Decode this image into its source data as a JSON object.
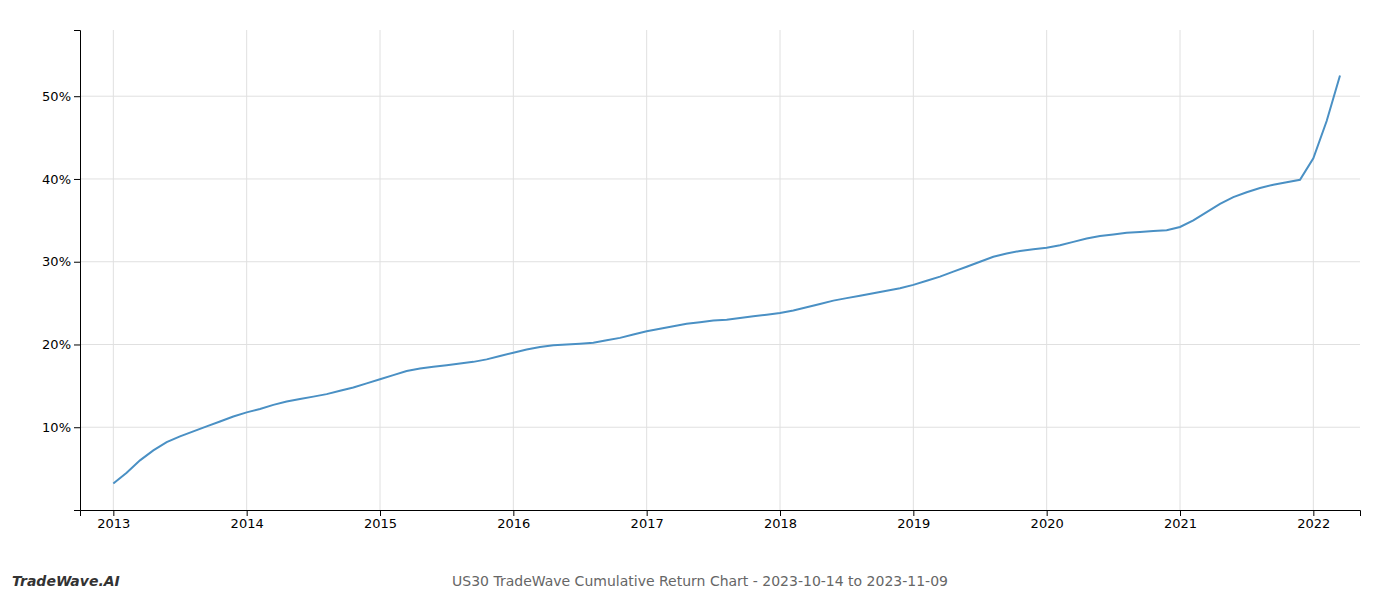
{
  "chart_data": {
    "type": "line",
    "title": "US30 TradeWave Cumulative Return Chart - 2023-10-14 to 2023-11-09",
    "annotations": [
      "TradeWave.AI"
    ],
    "x": [
      2013.0,
      2013.1,
      2013.2,
      2013.3,
      2013.4,
      2013.5,
      2013.6,
      2013.7,
      2013.8,
      2013.9,
      2014.0,
      2014.1,
      2014.2,
      2014.3,
      2014.4,
      2014.5,
      2014.6,
      2014.7,
      2014.8,
      2014.9,
      2015.0,
      2015.1,
      2015.2,
      2015.3,
      2015.4,
      2015.5,
      2015.6,
      2015.7,
      2015.8,
      2015.9,
      2016.0,
      2016.1,
      2016.2,
      2016.3,
      2016.4,
      2016.5,
      2016.6,
      2016.7,
      2016.8,
      2016.9,
      2017.0,
      2017.1,
      2017.2,
      2017.3,
      2017.4,
      2017.5,
      2017.6,
      2017.7,
      2017.8,
      2017.9,
      2018.0,
      2018.1,
      2018.2,
      2018.3,
      2018.4,
      2018.5,
      2018.6,
      2018.7,
      2018.8,
      2018.9,
      2019.0,
      2019.1,
      2019.2,
      2019.3,
      2019.4,
      2019.5,
      2019.6,
      2019.7,
      2019.8,
      2019.9,
      2020.0,
      2020.1,
      2020.2,
      2020.3,
      2020.4,
      2020.5,
      2020.6,
      2020.7,
      2020.8,
      2020.9,
      2021.0,
      2021.1,
      2021.2,
      2021.3,
      2021.4,
      2021.5,
      2021.6,
      2021.7,
      2021.8,
      2021.9,
      2022.0,
      2022.1,
      2022.2
    ],
    "values": [
      3.2,
      4.5,
      6.0,
      7.2,
      8.2,
      8.9,
      9.5,
      10.1,
      10.7,
      11.3,
      11.8,
      12.2,
      12.7,
      13.1,
      13.4,
      13.7,
      14.0,
      14.4,
      14.8,
      15.3,
      15.8,
      16.3,
      16.8,
      17.1,
      17.3,
      17.5,
      17.7,
      17.9,
      18.2,
      18.6,
      19.0,
      19.4,
      19.7,
      19.9,
      20.0,
      20.1,
      20.2,
      20.5,
      20.8,
      21.2,
      21.6,
      21.9,
      22.2,
      22.5,
      22.7,
      22.9,
      23.0,
      23.2,
      23.4,
      23.6,
      23.8,
      24.1,
      24.5,
      24.9,
      25.3,
      25.6,
      25.9,
      26.2,
      26.5,
      26.8,
      27.2,
      27.7,
      28.2,
      28.8,
      29.4,
      30.0,
      30.6,
      31.0,
      31.3,
      31.5,
      31.7,
      32.0,
      32.4,
      32.8,
      33.1,
      33.3,
      33.5,
      33.6,
      33.7,
      33.8,
      34.2,
      35.0,
      36.0,
      37.0,
      37.8,
      38.4,
      38.9,
      39.3,
      39.6,
      39.9,
      42.5,
      47.0,
      52.5
    ],
    "color": "#4a90c4",
    "xlim": [
      2012.75,
      2022.35
    ],
    "xticks": [
      2013,
      2014,
      2015,
      2016,
      2017,
      2018,
      2019,
      2020,
      2021,
      2022
    ],
    "ylim": [
      0,
      58
    ],
    "yticks": [
      {
        "value": 10,
        "label": "10%"
      },
      {
        "value": 20,
        "label": "20%"
      },
      {
        "value": 30,
        "label": "30%"
      },
      {
        "value": 40,
        "label": "40%"
      },
      {
        "value": 50,
        "label": "50%"
      }
    ],
    "grid": true
  }
}
